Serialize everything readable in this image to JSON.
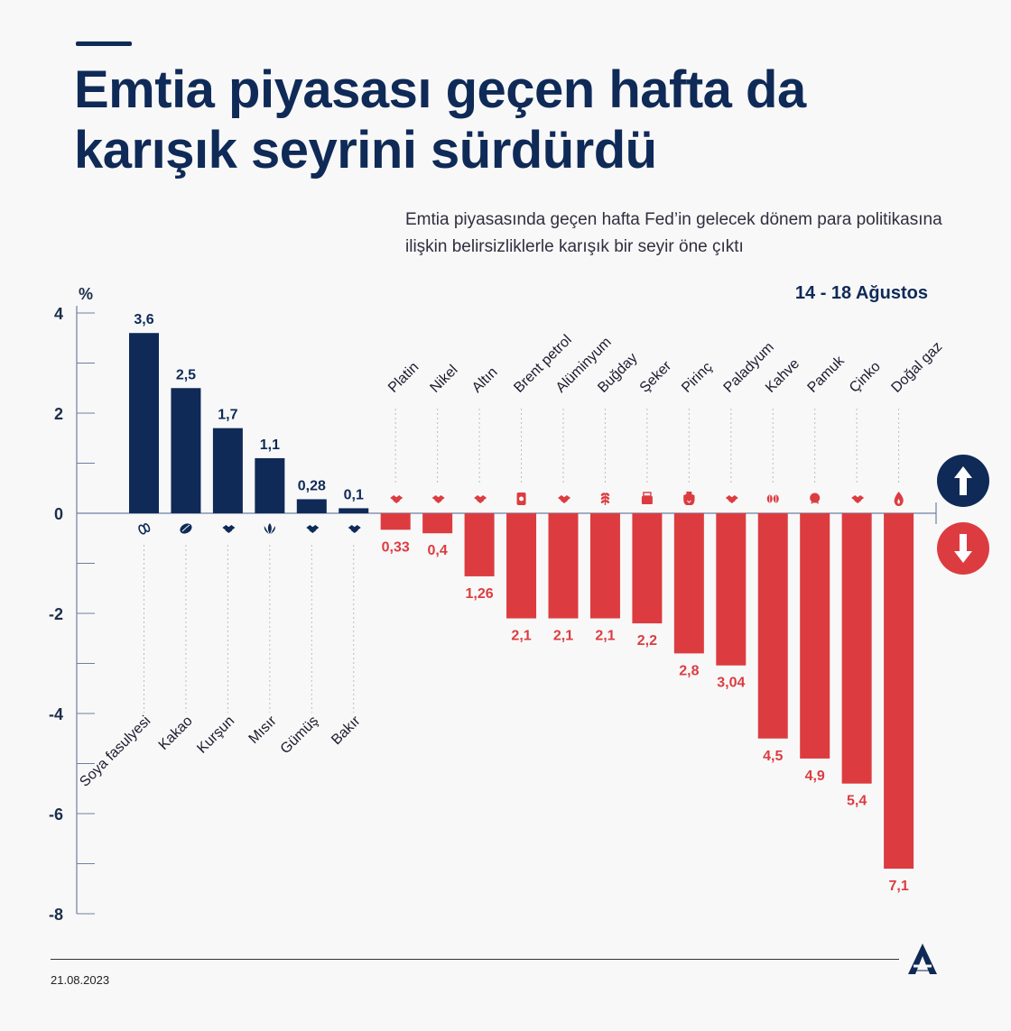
{
  "header": {
    "title": "Emtia piyasası geçen hafta da karışık seyrini sürdürdü",
    "subtitle": "Emtia piyasasında geçen hafta Fed’in gelecek dönem para politikasına ilişkin belirsizliklerle karışık bir seyir öne çıktı",
    "date_range": "14 - 18 Ağustos"
  },
  "footer": {
    "date": "21.08.2023"
  },
  "colors": {
    "positive": "#0f2a57",
    "negative": "#dc3c40",
    "title": "#0f2a57",
    "axis": "#6e7fa3"
  },
  "chart_data": {
    "type": "bar",
    "ylabel": "%",
    "ylim": [
      -8,
      4
    ],
    "yticks": [
      4,
      2,
      0,
      -2,
      -4,
      -6,
      -8
    ],
    "grid": false,
    "categories": [
      "Soya fasulyesi",
      "Kakao",
      "Kurşun",
      "Mısır",
      "Gümüş",
      "Bakır",
      "Platin",
      "Nikel",
      "Altın",
      "Brent petrol",
      "Alüminyum",
      "Buğday",
      "Şeker",
      "Pirinç",
      "Paladyum",
      "Kahve",
      "Pamuk",
      "Çinko",
      "Doğal gaz"
    ],
    "values": [
      3.6,
      2.5,
      1.7,
      1.1,
      0.28,
      0.1,
      -0.33,
      -0.4,
      -1.26,
      -2.1,
      -2.1,
      -2.1,
      -2.2,
      -2.8,
      -3.04,
      -4.5,
      -4.9,
      -5.4,
      -7.1
    ],
    "value_labels": [
      "3,6",
      "2,5",
      "1,7",
      "1,1",
      "0,28",
      "0,1",
      "0,33",
      "0,4",
      "1,26",
      "2,1",
      "2,1",
      "2,1",
      "2,2",
      "2,8",
      "3,04",
      "4,5",
      "4,9",
      "5,4",
      "7,1"
    ],
    "icons": [
      "soybean-icon",
      "cocoa-icon",
      "metal-bars-icon",
      "corn-icon",
      "metal-bars-icon",
      "metal-bars-icon",
      "metal-bars-icon",
      "metal-bars-icon",
      "metal-bars-icon",
      "oil-barrel-icon",
      "metal-bars-icon",
      "wheat-icon",
      "sugar-icon",
      "rice-sack-icon",
      "metal-bars-icon",
      "coffee-beans-icon",
      "cotton-icon",
      "metal-bars-icon",
      "gas-flame-icon"
    ],
    "legend": [
      {
        "icon": "arrow-up-icon",
        "color": "#0f2a57"
      },
      {
        "icon": "arrow-down-icon",
        "color": "#dc3c40"
      }
    ]
  }
}
